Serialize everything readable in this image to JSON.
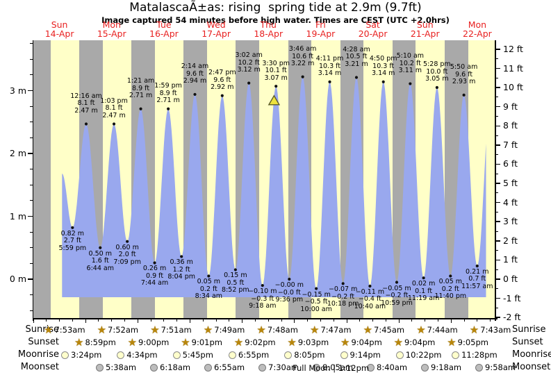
{
  "title": "MatalascaÃ±as: rising  spring tide at 2.9m (9.7ft)",
  "subtitle": "Image captured 54 minutes before high water. Times are CEST (UTC +2.0hrs)",
  "colors": {
    "day_band": "#ffffc8",
    "night_band": "#a9a9a9",
    "tide_fill": "#99a8ee",
    "day_label_red": "#e82020",
    "marker_fill": "#ede23d",
    "marker_stroke": "#5a5a28",
    "star_gold": "#b8860b",
    "moonrise_fill": "#ffffcc",
    "moonset_fill": "#bdbdbd",
    "axis_black": "#000000"
  },
  "days": [
    {
      "dow": "Sun",
      "date": "14-Apr"
    },
    {
      "dow": "Mon",
      "date": "15-Apr"
    },
    {
      "dow": "Tue",
      "date": "16-Apr"
    },
    {
      "dow": "Wed",
      "date": "17-Apr"
    },
    {
      "dow": "Thu",
      "date": "18-Apr"
    },
    {
      "dow": "Fri",
      "date": "19-Apr"
    },
    {
      "dow": "Sat",
      "date": "20-Apr"
    },
    {
      "dow": "Sun",
      "date": "21-Apr"
    },
    {
      "dow": "Mon",
      "date": "22-Apr"
    }
  ],
  "axes": {
    "left_unit": "m",
    "left_ticks": [
      {
        "v": 0,
        "label": "0 m"
      },
      {
        "v": 1,
        "label": "1 m"
      },
      {
        "v": 2,
        "label": "2 m"
      },
      {
        "v": 3,
        "label": "3 m"
      }
    ],
    "right_unit": "ft",
    "right_ticks": [
      {
        "v": -2,
        "label": "-2 ft"
      },
      {
        "v": -1,
        "label": "-1 ft"
      },
      {
        "v": 0,
        "label": "0 ft"
      },
      {
        "v": 1,
        "label": "1 ft"
      },
      {
        "v": 2,
        "label": "2 ft"
      },
      {
        "v": 3,
        "label": "3 ft"
      },
      {
        "v": 4,
        "label": "4 ft"
      },
      {
        "v": 5,
        "label": "5 ft"
      },
      {
        "v": 6,
        "label": "6 ft"
      },
      {
        "v": 7,
        "label": "7 ft"
      },
      {
        "v": 8,
        "label": "8 ft"
      },
      {
        "v": 9,
        "label": "9 ft"
      },
      {
        "v": 10,
        "label": "10 ft"
      },
      {
        "v": 11,
        "label": "11 ft"
      },
      {
        "v": 12,
        "label": "12 ft"
      }
    ]
  },
  "chart_data": {
    "type": "area",
    "title": "MatalascaÃ±as: rising  spring tide at 2.9m (9.7ft)",
    "x_axis": "date/time (hours from 14-Apr 00:00 CEST)",
    "y_axis_left": "tide height (m)",
    "y_axis_right": "tide height (ft)",
    "xlim_hours": [
      0,
      212
    ],
    "ylim_m": [
      -0.62,
      3.8
    ],
    "data_start": {
      "t": 13.2,
      "h": 1.68
    },
    "data_end_clip_t": 208,
    "next_high_after_end": {
      "t": 210.2,
      "h": 2.9
    },
    "current_time_marker": {
      "t": 110.6,
      "note": "54 minutes before high water (3:30 pm high)"
    },
    "extremes": [
      {
        "kind": "low",
        "t": 17.983,
        "h": 0.82,
        "lines": [
          "0.82 m",
          "2.7 ft",
          "5:59 pm"
        ]
      },
      {
        "kind": "high",
        "t": 24.267,
        "h": 2.47,
        "lines": [
          "12:16 am",
          "8.1 ft",
          "2.47 m"
        ]
      },
      {
        "kind": "low",
        "t": 30.733,
        "h": 0.5,
        "lines": [
          "0.50 m",
          "1.6 ft",
          "6:44 am"
        ]
      },
      {
        "kind": "high",
        "t": 37.05,
        "h": 2.47,
        "lines": [
          "1:03 pm",
          "8.1 ft",
          "2.47 m"
        ]
      },
      {
        "kind": "low",
        "t": 43.15,
        "h": 0.6,
        "lines": [
          "0.60 m",
          "2.0 ft",
          "7:09 pm"
        ]
      },
      {
        "kind": "high",
        "t": 49.35,
        "h": 2.71,
        "lines": [
          "1:21 am",
          "8.9 ft",
          "2.71 m"
        ]
      },
      {
        "kind": "low",
        "t": 55.733,
        "h": 0.26,
        "lines": [
          "0.26 m",
          "0.9 ft",
          "7:44 am"
        ]
      },
      {
        "kind": "high",
        "t": 61.983,
        "h": 2.71,
        "lines": [
          "1:59 pm",
          "8.9 ft",
          "2.71 m"
        ]
      },
      {
        "kind": "low",
        "t": 68.067,
        "h": 0.36,
        "lines": [
          "0.36 m",
          "1.2 ft",
          "8:04 pm"
        ]
      },
      {
        "kind": "high",
        "t": 74.233,
        "h": 2.94,
        "lines": [
          "2:14 am",
          "9.6 ft",
          "2.94 m"
        ]
      },
      {
        "kind": "low",
        "t": 80.567,
        "h": 0.05,
        "lines": [
          "0.05 m",
          "0.2 ft",
          "8:34 am"
        ]
      },
      {
        "kind": "high",
        "t": 86.783,
        "h": 2.92,
        "lines": [
          "2:47 pm",
          "9.6 ft",
          "2.92 m"
        ]
      },
      {
        "kind": "low",
        "t": 92.867,
        "h": 0.15,
        "lines": [
          "0.15 m",
          "0.5 ft",
          "8:52 pm"
        ]
      },
      {
        "kind": "high",
        "t": 99.033,
        "h": 3.12,
        "lines": [
          "3:02 am",
          "10.2 ft",
          "3.12 m"
        ]
      },
      {
        "kind": "low",
        "t": 105.3,
        "h": -0.1,
        "lines": [
          "−0.10 m",
          "−0.3 ft",
          "9:18 am"
        ]
      },
      {
        "kind": "high",
        "t": 111.5,
        "h": 3.07,
        "lines": [
          "3:30 pm",
          "10.1 ft",
          "3.07 m"
        ]
      },
      {
        "kind": "low",
        "t": 117.6,
        "h": 0.0,
        "lines": [
          "−0.00 m",
          "−0.0 ft",
          "9:36 pm"
        ]
      },
      {
        "kind": "high",
        "t": 123.767,
        "h": 3.22,
        "lines": [
          "3:46 am",
          "10.6 ft",
          "3.22 m"
        ]
      },
      {
        "kind": "low",
        "t": 130.0,
        "h": -0.15,
        "lines": [
          "−0.15 m",
          "−0.5 ft",
          "10:00 am"
        ]
      },
      {
        "kind": "high",
        "t": 136.183,
        "h": 3.14,
        "lines": [
          "4:11 pm",
          "10.3 ft",
          "3.14 m"
        ]
      },
      {
        "kind": "low",
        "t": 142.3,
        "h": -0.07,
        "lines": [
          "−0.07 m",
          "−0.2 ft",
          "10:18 pm"
        ]
      },
      {
        "kind": "high",
        "t": 148.467,
        "h": 3.21,
        "lines": [
          "4:28 am",
          "10.5 ft",
          "3.21 m"
        ]
      },
      {
        "kind": "low",
        "t": 154.667,
        "h": -0.11,
        "lines": [
          "−0.11 m",
          "−0.4 ft",
          "10:40 am"
        ]
      },
      {
        "kind": "high",
        "t": 160.833,
        "h": 3.14,
        "lines": [
          "4:50 pm",
          "10.3 ft",
          "3.14 m"
        ]
      },
      {
        "kind": "low",
        "t": 166.983,
        "h": -0.05,
        "lines": [
          "−0.05 m",
          "−0.2 ft",
          "10:59 pm"
        ]
      },
      {
        "kind": "high",
        "t": 173.167,
        "h": 3.11,
        "lines": [
          "5:10 am",
          "10.2 ft",
          "3.11 m"
        ]
      },
      {
        "kind": "low",
        "t": 179.317,
        "h": 0.02,
        "lines": [
          "0.02 m",
          "0.1 ft",
          "11:19 am"
        ]
      },
      {
        "kind": "high",
        "t": 185.467,
        "h": 3.05,
        "lines": [
          "5:28 pm",
          "10.0 ft",
          "3.05 m"
        ]
      },
      {
        "kind": "low",
        "t": 191.667,
        "h": 0.05,
        "lines": [
          "0.05 m",
          "0.2 ft",
          "11:40 pm"
        ]
      },
      {
        "kind": "high",
        "t": 197.833,
        "h": 2.93,
        "lines": [
          "5:50 am",
          "9.6 ft",
          "2.93 m"
        ]
      },
      {
        "kind": "low",
        "t": 203.95,
        "h": 0.21,
        "lines": [
          "0.21 m",
          "0.7 ft",
          "11:57 am"
        ]
      }
    ]
  },
  "almanac": {
    "rows": [
      {
        "label": "Sunrise",
        "icon": "sunrise-star",
        "times": [
          "7:53am",
          "7:52am",
          "7:51am",
          "7:49am",
          "7:48am",
          "7:47am",
          "7:45am",
          "7:44am",
          "7:43am"
        ]
      },
      {
        "label": "Sunset",
        "icon": "sunset-star",
        "times": [
          "8:59pm",
          "9:00pm",
          "9:01pm",
          "9:02pm",
          "9:03pm",
          "9:04pm",
          "9:04pm",
          "9:05pm"
        ]
      },
      {
        "label": "Moonrise",
        "icon": "moonrise-circle",
        "times": [
          "3:24pm",
          "4:34pm",
          "5:45pm",
          "6:55pm",
          "8:05pm",
          "9:14pm",
          "10:22pm",
          "11:28pm"
        ]
      },
      {
        "label": "Moonset",
        "icon": "moonset-circle",
        "times": [
          "5:38am",
          "6:18am",
          "6:55am",
          "7:30am",
          "8:05am",
          "8:40am",
          "9:18am",
          "9:58am"
        ]
      }
    ],
    "moon_phase": "Full Moon | 1:12pm"
  }
}
